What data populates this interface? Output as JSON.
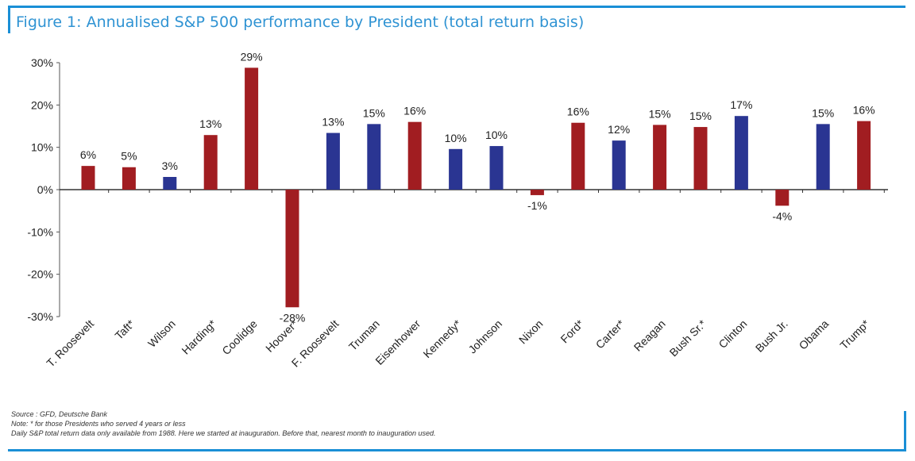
{
  "header": {
    "title": "Figure 1: Annualised S&P 500 performance by President (total return basis)"
  },
  "footer": {
    "source": "Source : GFD, Deutsche Bank",
    "note1": "Note: * for those Presidents who served 4 years or less",
    "note2": "Daily S&P total return data only available from 1988. Here we started at inauguration. Before that, nearest month to inauguration used."
  },
  "colors": {
    "republican": "#a11d21",
    "democrat": "#2a3592",
    "accent": "#1a8fd6"
  },
  "chart_data": {
    "type": "bar",
    "title": "Figure 1: Annualised S&P 500 performance by President (total return basis)",
    "xlabel": "",
    "ylabel": "",
    "ylim": [
      -30,
      30
    ],
    "yticks": [
      30,
      20,
      10,
      0,
      -10,
      -20,
      -30
    ],
    "ytick_labels": [
      "30%",
      "20%",
      "10%",
      "0%",
      "-10%",
      "-20%",
      "-30%"
    ],
    "grid": false,
    "legend": "none",
    "categories": [
      "T. Roosevelt",
      "Taft*",
      "Wilson",
      "Harding*",
      "Coolidge",
      "Hoover*",
      "F. Roosevelt",
      "Truman",
      "Eisenhower",
      "Kennedy*",
      "Johnson",
      "Nixon",
      "Ford*",
      "Carter*",
      "Reagan",
      "Bush Sr.*",
      "Clinton",
      "Bush Jr.",
      "Obama",
      "Trump*"
    ],
    "values": [
      5.6,
      5.3,
      3.0,
      12.9,
      28.8,
      -27.8,
      13.4,
      15.5,
      16.0,
      9.6,
      10.3,
      -1.3,
      15.8,
      11.6,
      15.3,
      14.8,
      17.4,
      -3.8,
      15.5,
      16.2
    ],
    "labels": [
      "6%",
      "5%",
      "3%",
      "13%",
      "29%",
      "-28%",
      "13%",
      "15%",
      "16%",
      "10%",
      "10%",
      "-1%",
      "16%",
      "12%",
      "15%",
      "15%",
      "17%",
      "-4%",
      "15%",
      "16%"
    ],
    "party": [
      "R",
      "R",
      "D",
      "R",
      "R",
      "R",
      "D",
      "D",
      "R",
      "D",
      "D",
      "R",
      "R",
      "D",
      "R",
      "R",
      "D",
      "R",
      "D",
      "R"
    ]
  }
}
